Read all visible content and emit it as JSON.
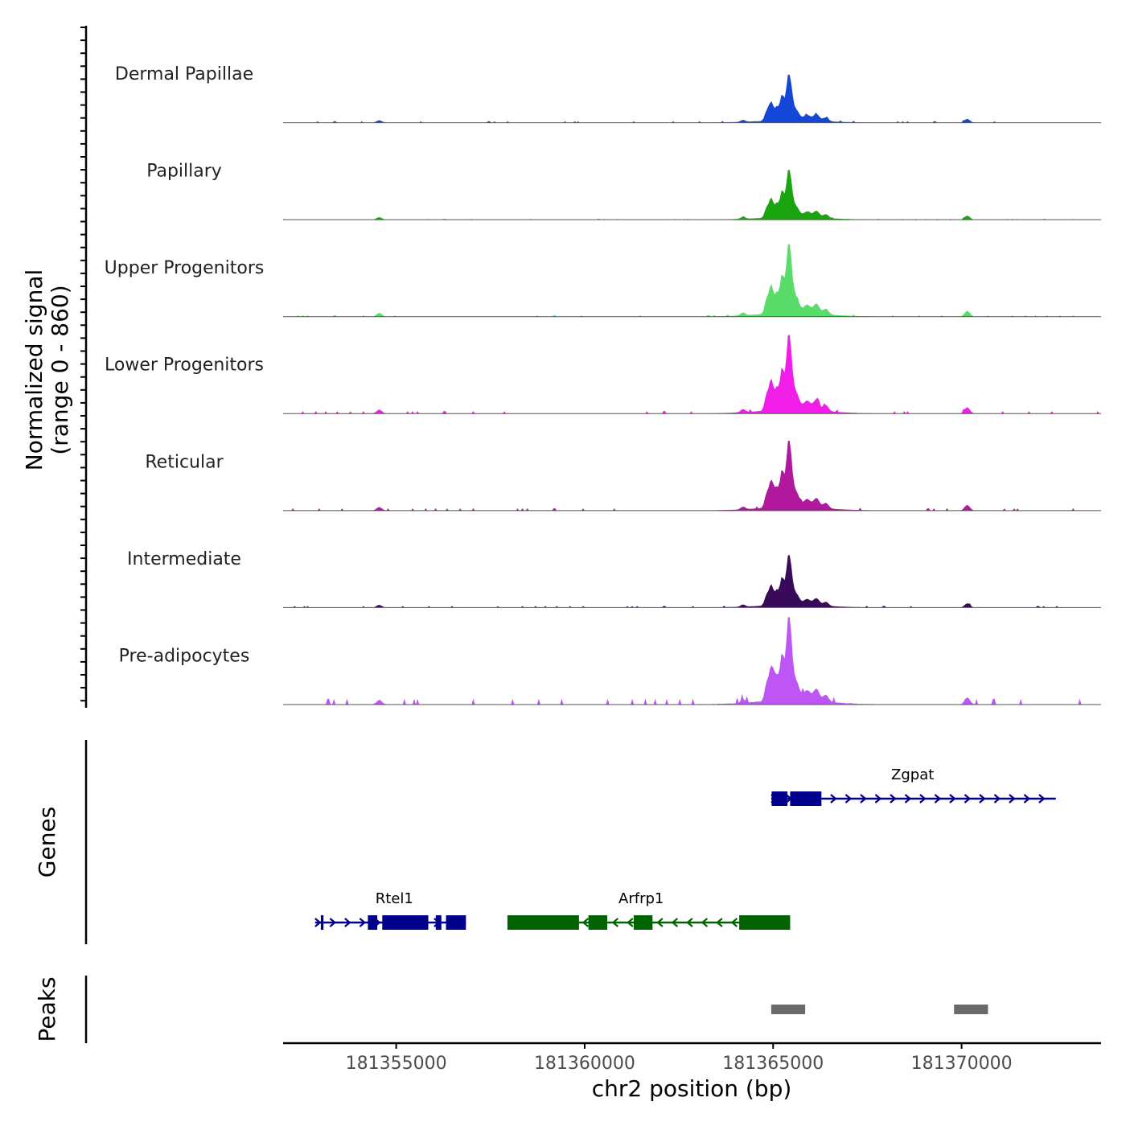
{
  "chart_data": {
    "type": "area",
    "title": "",
    "ylabel_line1": "Normalized signal",
    "ylabel_line2": "(range 0 - 860)",
    "yrange": [
      0,
      860
    ],
    "xlabel": "chr2 position (bp)",
    "xlim": [
      181352000,
      181373700
    ],
    "xticks": [
      181355000,
      181360000,
      181365000,
      181370000
    ],
    "xtick_labels": [
      "181355000",
      "181360000",
      "181365000",
      "181370000"
    ],
    "genes_label": "Genes",
    "peaks_label": "Peaks",
    "tracks": [
      {
        "name": "Dermal Papillae",
        "color": "#1446D8",
        "scale": 0.55,
        "bg": 0.02
      },
      {
        "name": "Papillary",
        "color": "#1AA510",
        "scale": 0.57,
        "bg": 0.01
      },
      {
        "name": "Upper Progenitors",
        "color": "#5ADC6A",
        "scale": 0.83,
        "bg": 0.012
      },
      {
        "name": "Lower Progenitors",
        "color": "#F01EE8",
        "scale": 0.9,
        "bg": 0.022
      },
      {
        "name": "Reticular",
        "color": "#B0189E",
        "scale": 0.8,
        "bg": 0.022
      },
      {
        "name": "Intermediate",
        "color": "#3A0A5A",
        "scale": 0.6,
        "bg": 0.02
      },
      {
        "name": "Pre-adipocytes",
        "color": "#BE55F5",
        "scale": 1.0,
        "bg": 0.045
      }
    ],
    "signal_peaks": [
      {
        "x": 181364820,
        "w": 50,
        "h": 0.18
      },
      {
        "x": 181364950,
        "w": 60,
        "h": 0.4
      },
      {
        "x": 181365100,
        "w": 50,
        "h": 0.27
      },
      {
        "x": 181365230,
        "w": 50,
        "h": 0.5
      },
      {
        "x": 181365420,
        "w": 75,
        "h": 1.0
      },
      {
        "x": 181365620,
        "w": 80,
        "h": 0.2
      },
      {
        "x": 181365900,
        "w": 90,
        "h": 0.12
      },
      {
        "x": 181366150,
        "w": 80,
        "h": 0.14
      },
      {
        "x": 181366400,
        "w": 70,
        "h": 0.08
      },
      {
        "x": 181370150,
        "w": 70,
        "h": 0.08
      },
      {
        "x": 181354550,
        "w": 70,
        "h": 0.05
      },
      {
        "x": 181364200,
        "w": 60,
        "h": 0.04
      }
    ],
    "genes": [
      {
        "name": "Zgpat",
        "color": "#00008B",
        "strand": "+",
        "row": 0,
        "start": 181364950,
        "end": 181372500,
        "exons": [
          [
            181364960,
            181365380
          ],
          [
            181365450,
            181366280
          ]
        ],
        "label_x": 181368700
      },
      {
        "name": "Rtel1",
        "color": "#00008B",
        "strand": "+",
        "row": 1,
        "start": 181352850,
        "end": 181356850,
        "exons": [
          [
            181353000,
            181353070
          ],
          [
            181354250,
            181354500
          ],
          [
            181354630,
            181355850
          ],
          [
            181356050,
            181356200
          ],
          [
            181356320,
            181356850
          ]
        ],
        "label_x": 181354950
      },
      {
        "name": "Arfrp1",
        "color": "#006400",
        "strand": "-",
        "row": 1,
        "start": 181357950,
        "end": 181365450,
        "exons": [
          [
            181357950,
            181359850
          ],
          [
            181360100,
            181360600
          ],
          [
            181361300,
            181361800
          ],
          [
            181364100,
            181365450
          ]
        ],
        "label_x": 181361500
      }
    ],
    "peaks": [
      [
        181364950,
        181365850
      ],
      [
        181369800,
        181370700
      ]
    ],
    "peak_color": "#6A6A6A"
  }
}
